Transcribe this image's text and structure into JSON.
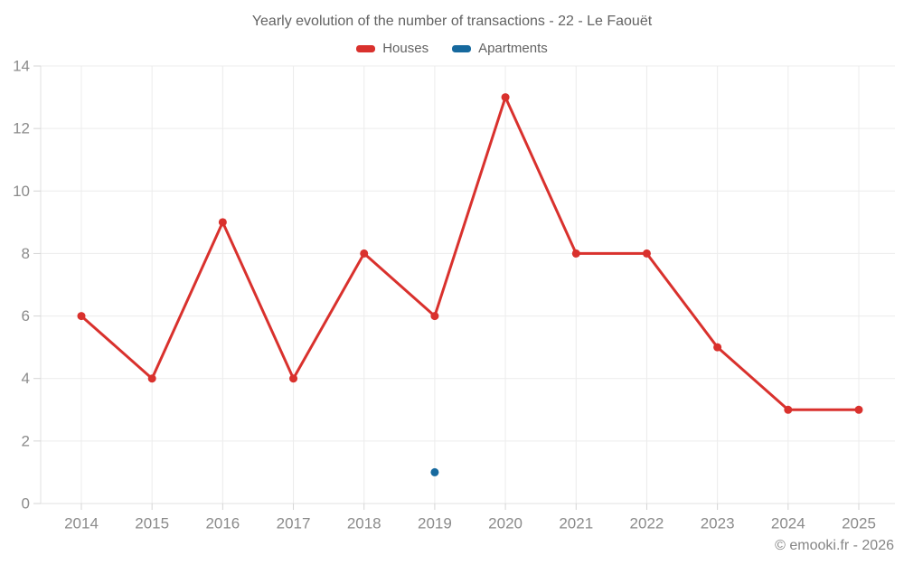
{
  "page": {
    "footer": "© emooki.fr - 2026"
  },
  "legend": {
    "items": [
      {
        "label": "Houses",
        "color": "#d9312d"
      },
      {
        "label": "Apartments",
        "color": "#16699e"
      }
    ]
  },
  "chart_data": {
    "type": "line",
    "title": "Yearly evolution of the number of transactions - 22 - Le Faouët",
    "categories": [
      "2014",
      "2015",
      "2016",
      "2017",
      "2018",
      "2019",
      "2020",
      "2021",
      "2022",
      "2023",
      "2024",
      "2025"
    ],
    "series": [
      {
        "name": "Houses",
        "color": "#d9312d",
        "values": [
          6,
          4,
          9,
          4,
          8,
          6,
          13,
          8,
          8,
          5,
          3,
          3
        ]
      },
      {
        "name": "Apartments",
        "color": "#16699e",
        "values": [
          null,
          null,
          null,
          null,
          null,
          1,
          null,
          null,
          null,
          null,
          null,
          null
        ]
      }
    ],
    "ylim": [
      0,
      14
    ],
    "ytick_step": 2,
    "grid": true,
    "legend_position": "top",
    "styles": {
      "grid_color": "#ececec",
      "axis_border_color": "#e2e2e2",
      "tick_color": "#d4d4d4",
      "tick_label_color": "#8b8b8b",
      "line_width": 3,
      "point_radius": 4.5
    }
  }
}
